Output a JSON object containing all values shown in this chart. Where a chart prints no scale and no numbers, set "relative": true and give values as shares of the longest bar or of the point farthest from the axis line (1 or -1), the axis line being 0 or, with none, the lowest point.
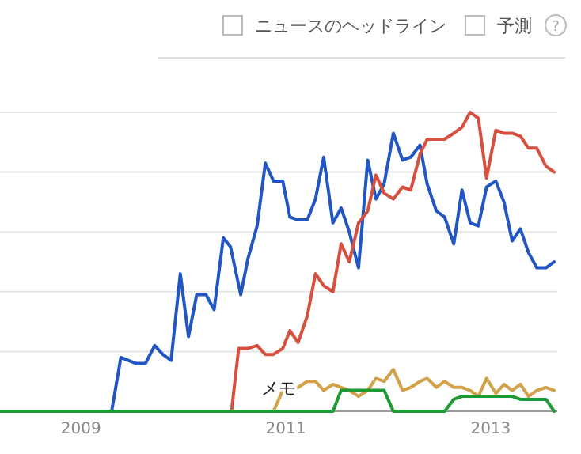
{
  "chart_data": {
    "type": "line",
    "relative": true,
    "grid": "y",
    "xlim": [
      2008.21,
      2013.65
    ],
    "xticks": [
      2009,
      2011,
      2013
    ],
    "annotations": [
      "ニュースのヘッドライン",
      "予測",
      "?",
      {
        "text": "メモ",
        "x": 2010.99
      }
    ],
    "series": [
      {
        "color": "#2256c2",
        "x": [
          2008.21,
          2009.3,
          2009.39,
          2009.54,
          2009.63,
          2009.72,
          2009.8,
          2009.88,
          2009.97,
          2010.05,
          2010.13,
          2010.22,
          2010.3,
          2010.39,
          2010.46,
          2010.56,
          2010.63,
          2010.72,
          2010.8,
          2010.88,
          2010.97,
          2011.04,
          2011.12,
          2011.21,
          2011.29,
          2011.37,
          2011.46,
          2011.54,
          2011.62,
          2011.71,
          2011.8,
          2011.88,
          2011.96,
          2012.05,
          2012.14,
          2012.22,
          2012.31,
          2012.38,
          2012.47,
          2012.55,
          2012.64,
          2012.72,
          2012.8,
          2012.88,
          2012.96,
          2013.05,
          2013.13,
          2013.21,
          2013.29,
          2013.37,
          2013.45,
          2013.54,
          2013.62
        ],
        "values": [
          0,
          0,
          0.18,
          0.16,
          0.16,
          0.22,
          0.19,
          0.17,
          0.46,
          0.25,
          0.39,
          0.39,
          0.34,
          0.58,
          0.55,
          0.39,
          0.51,
          0.62,
          0.83,
          0.77,
          0.77,
          0.65,
          0.64,
          0.64,
          0.71,
          0.85,
          0.63,
          0.68,
          0.6,
          0.48,
          0.84,
          0.71,
          0.76,
          0.93,
          0.84,
          0.85,
          0.89,
          0.76,
          0.67,
          0.65,
          0.56,
          0.74,
          0.63,
          0.62,
          0.75,
          0.77,
          0.7,
          0.57,
          0.61,
          0.53,
          0.48,
          0.48,
          0.5
        ]
      },
      {
        "color": "#d6503f",
        "x": [
          2008.21,
          2010.47,
          2010.54,
          2010.63,
          2010.72,
          2010.8,
          2010.88,
          2010.97,
          2011.04,
          2011.12,
          2011.21,
          2011.29,
          2011.37,
          2011.46,
          2011.54,
          2011.62,
          2011.71,
          2011.8,
          2011.88,
          2011.96,
          2012.05,
          2012.14,
          2012.22,
          2012.31,
          2012.38,
          2012.47,
          2012.55,
          2012.64,
          2012.72,
          2012.8,
          2012.88,
          2012.96,
          2013.05,
          2013.13,
          2013.21,
          2013.29,
          2013.37,
          2013.45,
          2013.54,
          2013.62
        ],
        "values": [
          0,
          0,
          0.21,
          0.21,
          0.22,
          0.19,
          0.19,
          0.21,
          0.27,
          0.23,
          0.32,
          0.46,
          0.42,
          0.4,
          0.56,
          0.5,
          0.63,
          0.67,
          0.79,
          0.73,
          0.71,
          0.75,
          0.74,
          0.86,
          0.91,
          0.91,
          0.91,
          0.93,
          0.95,
          1.0,
          0.98,
          0.78,
          0.94,
          0.93,
          0.93,
          0.92,
          0.88,
          0.88,
          0.82,
          0.8
        ]
      },
      {
        "color": "#d1a24a",
        "x": [
          2008.21,
          2010.88,
          2010.97,
          2011.04,
          2011.12,
          2011.21,
          2011.29,
          2011.37,
          2011.46,
          2011.54,
          2011.62,
          2011.71,
          2011.8,
          2011.88,
          2011.96,
          2012.05,
          2012.14,
          2012.22,
          2012.31,
          2012.38,
          2012.47,
          2012.55,
          2012.64,
          2012.72,
          2012.8,
          2012.88,
          2012.96,
          2013.05,
          2013.13,
          2013.21,
          2013.29,
          2013.37,
          2013.45,
          2013.54,
          2013.62
        ],
        "values": [
          0,
          0,
          0.07,
          0.07,
          0.08,
          0.1,
          0.1,
          0.07,
          0.09,
          0.08,
          0.07,
          0.05,
          0.07,
          0.11,
          0.1,
          0.14,
          0.07,
          0.08,
          0.1,
          0.11,
          0.08,
          0.1,
          0.08,
          0.08,
          0.07,
          0.05,
          0.11,
          0.06,
          0.09,
          0.07,
          0.09,
          0.05,
          0.07,
          0.08,
          0.07
        ]
      },
      {
        "color": "#1d9a33",
        "x": [
          2008.21,
          2011.46,
          2011.54,
          2011.96,
          2012.05,
          2012.55,
          2012.64,
          2012.72,
          2013.21,
          2013.29,
          2013.54,
          2013.62
        ],
        "values": [
          0,
          0,
          0.07,
          0.07,
          0,
          0,
          0.04,
          0.05,
          0.05,
          0.04,
          0.04,
          0
        ]
      }
    ]
  }
}
